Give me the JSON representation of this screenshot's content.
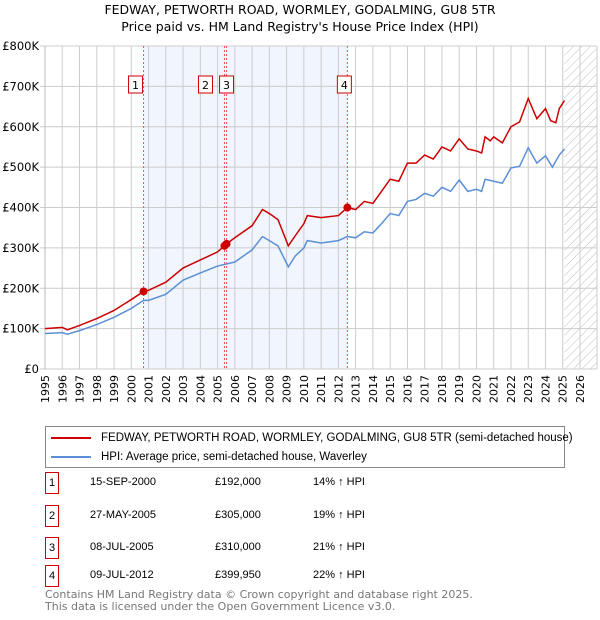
{
  "title": "FEDWAY, PETWORTH ROAD, WORMLEY, GODALMING, GU8 5TR",
  "subtitle": "Price paid vs. HM Land Registry's House Price Index (HPI)",
  "chart_data": {
    "type": "line",
    "xlim": [
      1995,
      2026
    ],
    "ylim": [
      0,
      800000
    ],
    "ytick_labels": [
      "£0",
      "£100K",
      "£200K",
      "£300K",
      "£400K",
      "£500K",
      "£600K",
      "£700K",
      "£800K"
    ],
    "yticks": [
      0,
      100000,
      200000,
      300000,
      400000,
      500000,
      600000,
      700000,
      800000
    ],
    "xticks": [
      1995,
      1996,
      1997,
      1998,
      1999,
      2000,
      2001,
      2002,
      2003,
      2004,
      2005,
      2006,
      2007,
      2008,
      2009,
      2010,
      2011,
      2012,
      2013,
      2014,
      2015,
      2016,
      2017,
      2018,
      2019,
      2020,
      2021,
      2022,
      2023,
      2024,
      2025,
      2026
    ],
    "grid": true,
    "shaded_range": [
      2000.71,
      2012.52
    ],
    "forecast_hatch_from": 2025.1,
    "colors": {
      "property": "#cc0000",
      "hpi": "#5b8fd6"
    },
    "series": [
      {
        "name": "FEDWAY, PETWORTH ROAD, WORMLEY, GODALMING, GU8 5TR (semi-detached house)",
        "x": [
          1995,
          1996,
          1996.3,
          1997,
          1998,
          1999,
          2000,
          2000.71,
          2001,
          2002,
          2003,
          2004,
          2005,
          2005.4,
          2005.52,
          2006,
          2007,
          2007.6,
          2008,
          2008.5,
          2009.1,
          2009.5,
          2010,
          2010.2,
          2011,
          2012,
          2012.52,
          2013,
          2013.5,
          2014,
          2014.5,
          2015,
          2015.5,
          2016,
          2016.5,
          2017,
          2017.5,
          2018,
          2018.5,
          2019,
          2019.5,
          2020,
          2020.3,
          2020.5,
          2020.8,
          2021,
          2021.5,
          2022,
          2022.5,
          2023,
          2023.5,
          2024,
          2024.3,
          2024.6,
          2024.8,
          2025.1
        ],
        "values": [
          100000,
          103000,
          97000,
          108000,
          125000,
          145000,
          172000,
          192000,
          195000,
          215000,
          250000,
          270000,
          290000,
          305000,
          310000,
          325000,
          355000,
          395000,
          385000,
          370000,
          305000,
          330000,
          360000,
          380000,
          375000,
          380000,
          399950,
          395000,
          415000,
          410000,
          440000,
          470000,
          465000,
          510000,
          510000,
          530000,
          520000,
          550000,
          540000,
          570000,
          545000,
          540000,
          535000,
          575000,
          565000,
          575000,
          560000,
          600000,
          612000,
          670000,
          620000,
          645000,
          615000,
          610000,
          645000,
          665000
        ]
      },
      {
        "name": "HPI: Average price, semi-detached house, Waverley",
        "x": [
          1995,
          1996,
          1996.3,
          1997,
          1998,
          1999,
          2000,
          2000.71,
          2001,
          2002,
          2003,
          2004,
          2005,
          2006,
          2007,
          2007.6,
          2008,
          2008.5,
          2009.1,
          2009.5,
          2010,
          2010.2,
          2011,
          2012,
          2012.52,
          2013,
          2013.5,
          2014,
          2014.5,
          2015,
          2015.5,
          2016,
          2016.5,
          2017,
          2017.5,
          2018,
          2018.5,
          2019,
          2019.5,
          2020,
          2020.3,
          2020.5,
          2021,
          2021.5,
          2022,
          2022.5,
          2023,
          2023.5,
          2024,
          2024.4,
          2024.8,
          2025.1
        ],
        "values": [
          88000,
          90000,
          86000,
          95000,
          110000,
          128000,
          150000,
          170000,
          170000,
          185000,
          220000,
          238000,
          255000,
          265000,
          295000,
          328000,
          318000,
          305000,
          253000,
          280000,
          300000,
          318000,
          312000,
          318000,
          328000,
          325000,
          340000,
          337000,
          360000,
          385000,
          380000,
          415000,
          420000,
          435000,
          428000,
          450000,
          440000,
          468000,
          440000,
          445000,
          440000,
          470000,
          465000,
          460000,
          498000,
          502000,
          548000,
          510000,
          528000,
          500000,
          530000,
          545000
        ]
      }
    ],
    "sales": [
      {
        "label": "1",
        "x": 2000.71,
        "value": 192000
      },
      {
        "label": "2",
        "x": 2005.4,
        "value": 305000
      },
      {
        "label": "3",
        "x": 2005.52,
        "value": 310000
      },
      {
        "label": "4",
        "x": 2012.52,
        "value": 399950
      }
    ]
  },
  "legend": {
    "property": "FEDWAY, PETWORTH ROAD, WORMLEY, GODALMING, GU8 5TR (semi-detached house)",
    "hpi": "HPI: Average price, semi-detached house, Waverley"
  },
  "transactions": [
    {
      "num": "1",
      "date": "15-SEP-2000",
      "price": "£192,000",
      "hpi": "14% ↑ HPI"
    },
    {
      "num": "2",
      "date": "27-MAY-2005",
      "price": "£305,000",
      "hpi": "19% ↑ HPI"
    },
    {
      "num": "3",
      "date": "08-JUL-2005",
      "price": "£310,000",
      "hpi": "21% ↑ HPI"
    },
    {
      "num": "4",
      "date": "09-JUL-2012",
      "price": "£399,950",
      "hpi": "22% ↑ HPI"
    }
  ],
  "footer": {
    "line1": "Contains HM Land Registry data © Crown copyright and database right 2025.",
    "line2": "This data is licensed under the Open Government Licence v3.0."
  }
}
